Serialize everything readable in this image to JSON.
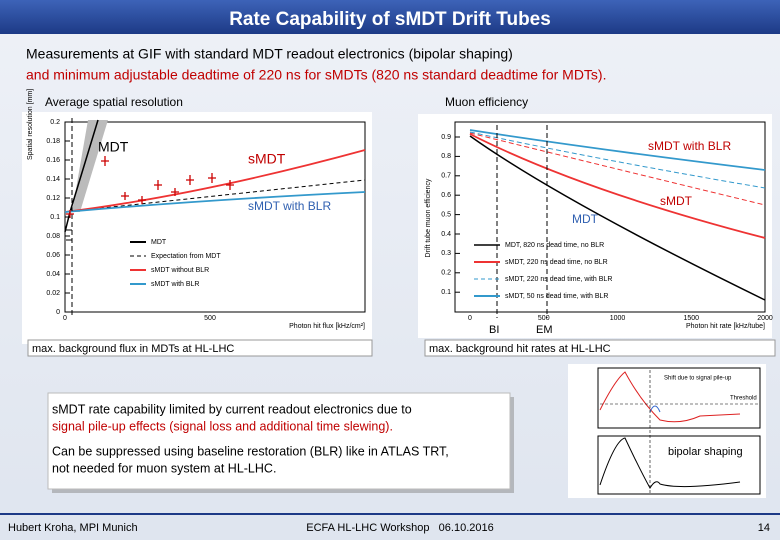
{
  "header": {
    "title": "Rate Capability of sMDT Drift Tubes"
  },
  "intro": {
    "line1": "Measurements at GIF with standard MDT readout electronics (bipolar shaping)",
    "line2": "and minimum adjustable deadtime of 220 ns for sMDTs (820 ns standard deadtime for MDTs)."
  },
  "left_plot": {
    "heading": "Average spatial resolution",
    "y_title": "Spatial resolution [mm]",
    "x_title": "Photon hit flux [kHz/cm²]",
    "yticks": [
      "0.2",
      "0.18",
      "0.16",
      "0.14",
      "0.12",
      "0.1",
      "0.08",
      "0.06",
      "0.04",
      "0.02",
      "0"
    ],
    "xticks": [
      "0",
      "500"
    ],
    "legend": [
      "MDT",
      "Expectation from MDT",
      "sMDT without BLR",
      "sMDT with BLR"
    ],
    "annotations": {
      "mdt": "MDT",
      "smdt": "sMDT",
      "smdt_blr": "sMDT with BLR"
    },
    "caption": "max. background flux in MDTs at HL-LHC"
  },
  "right_plot": {
    "heading": "Muon efficiency",
    "y_title": "Drift tube muon efficiency",
    "x_title": "Photon hit rate [kHz/tube]",
    "yticks": [
      "0.9",
      "0.8",
      "0.7",
      "0.6",
      "0.5",
      "0.4",
      "0.3",
      "0.2",
      "0.1"
    ],
    "xticks": [
      "0",
      "500",
      "1000",
      "1500",
      "2000"
    ],
    "legend": [
      "MDT, 820 ns dead time, no BLR",
      "sMDT, 220 ns dead time, no BLR",
      "sMDT, 220 ns dead time, with BLR",
      "sMDT, 50 ns dead time, with BLR"
    ],
    "annotations": {
      "smdt_blr": "sMDT with BLR",
      "smdt": "sMDT",
      "mdt": "MDT",
      "bi": "BI",
      "em": "EM"
    },
    "caption": "max. background hit rates at HL-LHC"
  },
  "summary": {
    "p1_line1": "sMDT rate capability limited by current readout electronics due to",
    "p1_line2": "signal pile-up effects (signal loss and additional time slewing).",
    "p2_line1": "Can be suppressed using baseline restoration (BLR) like in ATLAS TRT,",
    "p2_line2": "not needed for muon system at HL-LHC."
  },
  "signal_plot": {
    "shift": "Shift due to signal pile-up",
    "threshold": "Threshold",
    "label": "bipolar shaping"
  },
  "footer": {
    "author": "Hubert Kroha, MPI Munich",
    "event": "ECFA HL-LHC Workshop   06.10.2016",
    "page": "14"
  }
}
